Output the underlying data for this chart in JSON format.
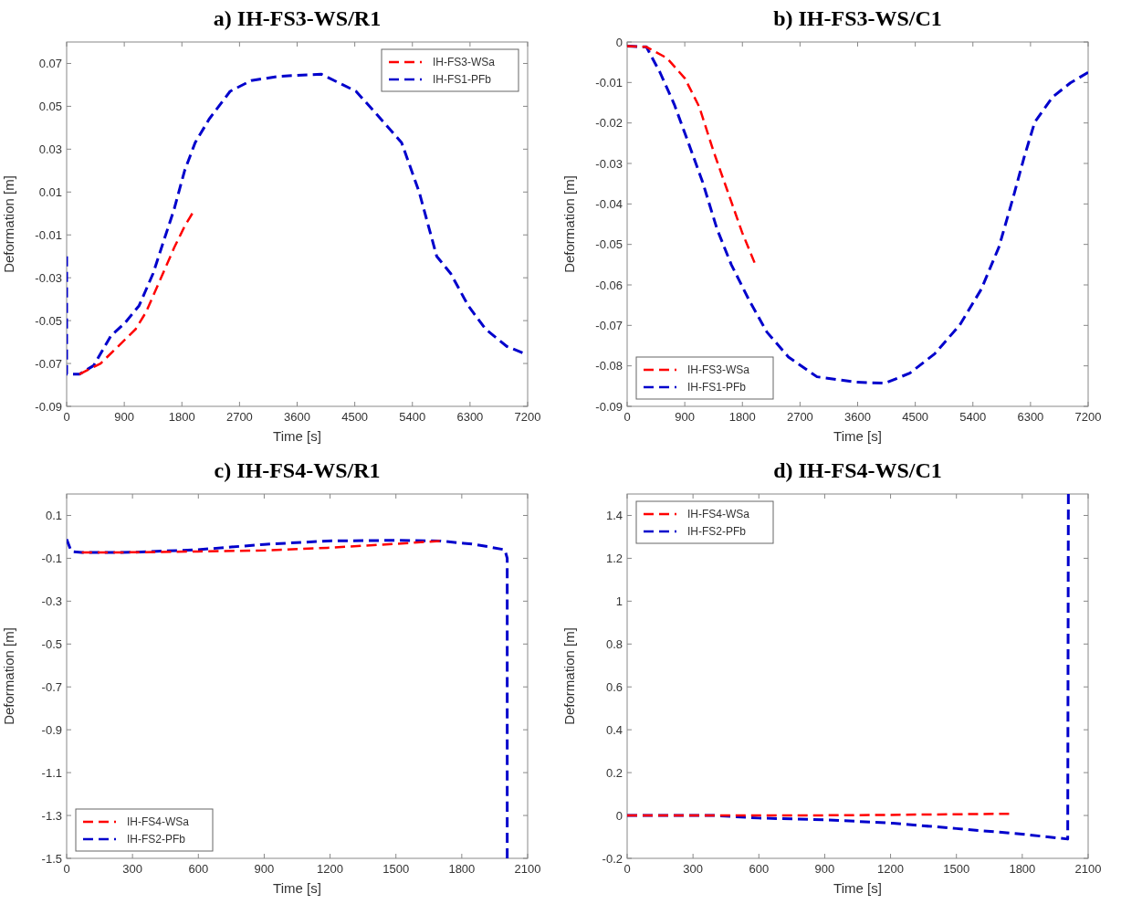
{
  "chart_data": [
    {
      "type": "line",
      "title": "a) IH-FS3-WS/R1",
      "xlabel": "Time [s]",
      "ylabel": "Deformation [m]",
      "xlim": [
        0,
        7200
      ],
      "xticks": [
        0,
        900,
        1800,
        2700,
        3600,
        4500,
        5400,
        6300,
        7200
      ],
      "ylim": [
        -0.09,
        0.08
      ],
      "yticks": [
        -0.09,
        -0.07,
        -0.05,
        -0.03,
        -0.01,
        0.01,
        0.03,
        0.05,
        0.07
      ],
      "legend": "top right",
      "line_style": "dashed",
      "grid": false,
      "series": [
        {
          "name": "IH-FS3-WSa",
          "color": "#ff0000",
          "x": [
            200,
            530,
            804,
            1077,
            1241,
            1460,
            1679,
            1843,
            1963
          ],
          "values": [
            -0.075,
            -0.07,
            -0.062,
            -0.054,
            -0.046,
            -0.031,
            -0.016,
            -0.006,
            0.0
          ]
        },
        {
          "name": "IH-FS1-PFb",
          "color": "#0000cc",
          "x": [
            0,
            0,
            200,
            421,
            694,
            913,
            1132,
            1350,
            1514,
            1679,
            1843,
            2007,
            2225,
            2553,
            2881,
            3319,
            3975,
            4520,
            4850,
            5232,
            5506,
            5780,
            5998,
            6271,
            6544,
            6873,
            7120
          ],
          "values": [
            -0.02,
            -0.075,
            -0.075,
            -0.071,
            -0.057,
            -0.051,
            -0.043,
            -0.028,
            -0.013,
            0.002,
            0.02,
            0.033,
            0.044,
            0.057,
            0.062,
            0.064,
            0.065,
            0.057,
            0.046,
            0.033,
            0.01,
            -0.02,
            -0.028,
            -0.043,
            -0.054,
            -0.062,
            -0.065
          ]
        }
      ]
    },
    {
      "type": "line",
      "title": "b) IH-FS3-WS/C1",
      "xlabel": "Time [s]",
      "ylabel": "Deformation [m]",
      "xlim": [
        0,
        7200
      ],
      "xticks": [
        0,
        900,
        1800,
        2700,
        3600,
        4500,
        5400,
        6300,
        7200
      ],
      "ylim": [
        -0.09,
        0
      ],
      "yticks": [
        -0.09,
        -0.08,
        -0.07,
        -0.06,
        -0.05,
        -0.04,
        -0.03,
        -0.02,
        -0.01,
        0
      ],
      "legend": "bottom left",
      "line_style": "dashed",
      "grid": false,
      "series": [
        {
          "name": "IH-FS3-WSa",
          "color": "#ff0000",
          "x": [
            0,
            300,
            624,
            903,
            1126,
            1349,
            1572,
            1795,
            1990
          ],
          "values": [
            -0.001,
            -0.0012,
            -0.004,
            -0.009,
            -0.016,
            -0.027,
            -0.037,
            -0.047,
            -0.0545
          ]
        },
        {
          "name": "IH-FS1-PFb",
          "color": "#0000cc",
          "x": [
            0,
            300,
            513,
            736,
            959,
            1181,
            1404,
            1627,
            1906,
            2185,
            2519,
            2965,
            3579,
            4025,
            4415,
            4805,
            5195,
            5530,
            5808,
            6031,
            6198,
            6366,
            6645,
            6923,
            7200
          ],
          "values": [
            -0.001,
            -0.0012,
            -0.0075,
            -0.0154,
            -0.025,
            -0.0347,
            -0.0462,
            -0.055,
            -0.0638,
            -0.0717,
            -0.0778,
            -0.0827,
            -0.084,
            -0.0843,
            -0.0818,
            -0.077,
            -0.0699,
            -0.0611,
            -0.0506,
            -0.0383,
            -0.0286,
            -0.0198,
            -0.0136,
            -0.0101,
            -0.0075
          ]
        }
      ]
    },
    {
      "type": "line",
      "title": "c) IH-FS4-WS/R1",
      "xlabel": "Time [s]",
      "ylabel": "Deformation [m]",
      "xlim": [
        0,
        2100
      ],
      "xticks": [
        0,
        300,
        600,
        900,
        1200,
        1500,
        1800,
        2100
      ],
      "ylim": [
        -1.5,
        0.2
      ],
      "yticks": [
        -1.5,
        -1.3,
        -1.1,
        -0.9,
        -0.7,
        -0.5,
        -0.3,
        -0.1,
        0.1
      ],
      "legend": "bottom left",
      "line_style": "dashed",
      "grid": false,
      "series": [
        {
          "name": "IH-FS4-WSa",
          "color": "#ff0000",
          "x": [
            69,
            300,
            597,
            900,
            1188,
            1508,
            1700
          ],
          "values": [
            -0.073,
            -0.072,
            -0.068,
            -0.063,
            -0.051,
            -0.032,
            -0.019
          ]
        },
        {
          "name": "IH-FS2-PFb",
          "color": "#0000cc",
          "x": [
            0,
            21,
            69,
            300,
            597,
            900,
            1188,
            1508,
            1700,
            1860,
            1996,
            2007,
            2007
          ],
          "values": [
            -0.011,
            -0.068,
            -0.073,
            -0.072,
            -0.06,
            -0.035,
            -0.019,
            -0.016,
            -0.019,
            -0.035,
            -0.06,
            -0.1,
            -1.5
          ]
        }
      ]
    },
    {
      "type": "line",
      "title": "d) IH-FS4-WS/C1",
      "xlabel": "Time [s]",
      "ylabel": "Deformation [m]",
      "xlim": [
        0,
        2100
      ],
      "xticks": [
        0,
        300,
        600,
        900,
        1200,
        1500,
        1800,
        2100
      ],
      "ylim": [
        -0.2,
        1.5
      ],
      "yticks": [
        -0.2,
        0,
        0.2,
        0.4,
        0.6,
        0.8,
        1,
        1.2,
        1.4
      ],
      "legend": "top left",
      "line_style": "dashed",
      "grid": false,
      "series": [
        {
          "name": "IH-FS4-WSa",
          "color": "#ff0000",
          "x": [
            0,
            600,
            1000,
            1740
          ],
          "values": [
            0,
            0,
            0.001,
            0.008
          ]
        },
        {
          "name": "IH-FS2-PFb",
          "color": "#0000cc",
          "x": [
            0,
            400,
            599,
            904,
            1210,
            1500,
            1789,
            2007,
            2010
          ],
          "values": [
            0,
            0,
            -0.012,
            -0.02,
            -0.036,
            -0.061,
            -0.086,
            -0.11,
            1.5
          ]
        }
      ]
    }
  ]
}
